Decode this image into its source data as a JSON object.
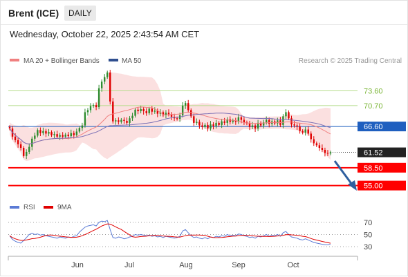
{
  "header": {
    "title": "Brent (ICE)",
    "period": "DAILY",
    "datetime": "Wednesday, October 22, 2025 2:43:54 AM CET"
  },
  "legend": {
    "bollinger": "MA 20 + Bollinger Bands",
    "ma50": "MA 50",
    "credit": "Research © 2025 Trading Central"
  },
  "rsi_legend": {
    "rsi": "RSI",
    "ma9": "9MA"
  },
  "colors": {
    "bollinger": "#f08080",
    "ma50": "#2f4f8f",
    "rsi": "#5b7bd5",
    "ma9": "#e00000",
    "up": "#2e8b2e",
    "down": "#e00000",
    "pivot": "#1f5fbf",
    "support": "#ff0000",
    "resistance": "#9acd32",
    "last": "#222222",
    "arrow": "#2f5f9f"
  },
  "chart_data": [
    {
      "type": "candlestick",
      "x_ticks": [
        "Jun",
        "Jul",
        "Aug",
        "Sep",
        "Oct"
      ],
      "ylim": [
        54.0,
        78.0
      ],
      "levels": [
        {
          "label": "73.60",
          "value": 73.6,
          "kind": "resistance"
        },
        {
          "label": "70.70",
          "value": 70.7,
          "kind": "resistance"
        },
        {
          "label": "66.60",
          "value": 66.6,
          "kind": "pivot"
        },
        {
          "label": "61.52",
          "value": 61.52,
          "kind": "last"
        },
        {
          "label": "58.50",
          "value": 58.5,
          "kind": "support"
        },
        {
          "label": "55.00",
          "value": 55.0,
          "kind": "support"
        }
      ],
      "closes": [
        66.2,
        64.6,
        63.9,
        63.1,
        62.4,
        60.8,
        61.6,
        62.6,
        64.2,
        64.8,
        65.9,
        65.3,
        65.7,
        65.2,
        65.5,
        64.9,
        65.1,
        64.6,
        64.9,
        64.6,
        65.0,
        64.7,
        65.3,
        64.9,
        65.6,
        66.3,
        66.8,
        69.4,
        69.8,
        70.6,
        70.8,
        70.4,
        74.1,
        75.4,
        76.3,
        77.2,
        71.5,
        67.6,
        67.8,
        67.5,
        67.9,
        67.7,
        67.3,
        68.2,
        68.7,
        69.9,
        69.6,
        70.0,
        69.6,
        69.2,
        70.1,
        69.5,
        69.7,
        69.1,
        69.4,
        68.8,
        69.3,
        69.0,
        68.5,
        68.2,
        68.1,
        68.8,
        70.7,
        71.2,
        69.8,
        68.6,
        67.3,
        67.5,
        66.8,
        66.5,
        66.9,
        66.2,
        67.0,
        66.7,
        67.3,
        66.9,
        67.6,
        67.3,
        68.0,
        67.5,
        67.8,
        67.5,
        68.4,
        67.9,
        67.4,
        67.2,
        66.5,
        66.8,
        66.2,
        67.3,
        66.8,
        67.4,
        67.9,
        67.1,
        67.6,
        67.2,
        67.8,
        66.9,
        68.6,
        69.4,
        68.2,
        67.0,
        66.8,
        66.6,
        65.7,
        65.4,
        66.0,
        65.2,
        64.1,
        63.3,
        62.9,
        62.4,
        62.0,
        61.4,
        61.3,
        61.52
      ],
      "rsi_ylim": [
        20,
        80
      ],
      "rsi_levels": [
        70,
        50,
        30
      ],
      "rsi": [
        48,
        42,
        39,
        37,
        36,
        40,
        45,
        50,
        52,
        50,
        51,
        49,
        50,
        48,
        47,
        46,
        45,
        44,
        46,
        45,
        44,
        46,
        45,
        47,
        48,
        54,
        58,
        62,
        64,
        65,
        66,
        64,
        70,
        72,
        71,
        73,
        58,
        45,
        44,
        46,
        45,
        43,
        44,
        46,
        47,
        50,
        49,
        50,
        49,
        48,
        49,
        47,
        48,
        46,
        47,
        45,
        47,
        46,
        45,
        44,
        45,
        47,
        56,
        58,
        53,
        48,
        45,
        46,
        44,
        43,
        45,
        43,
        46,
        45,
        47,
        46,
        48,
        47,
        50,
        48,
        49,
        48,
        51,
        50,
        48,
        47,
        45,
        46,
        44,
        47,
        46,
        48,
        50,
        47,
        49,
        48,
        50,
        47,
        53,
        55,
        50,
        46,
        45,
        44,
        42,
        41,
        43,
        41,
        39,
        37,
        36,
        35,
        34,
        33,
        33,
        34
      ]
    }
  ]
}
